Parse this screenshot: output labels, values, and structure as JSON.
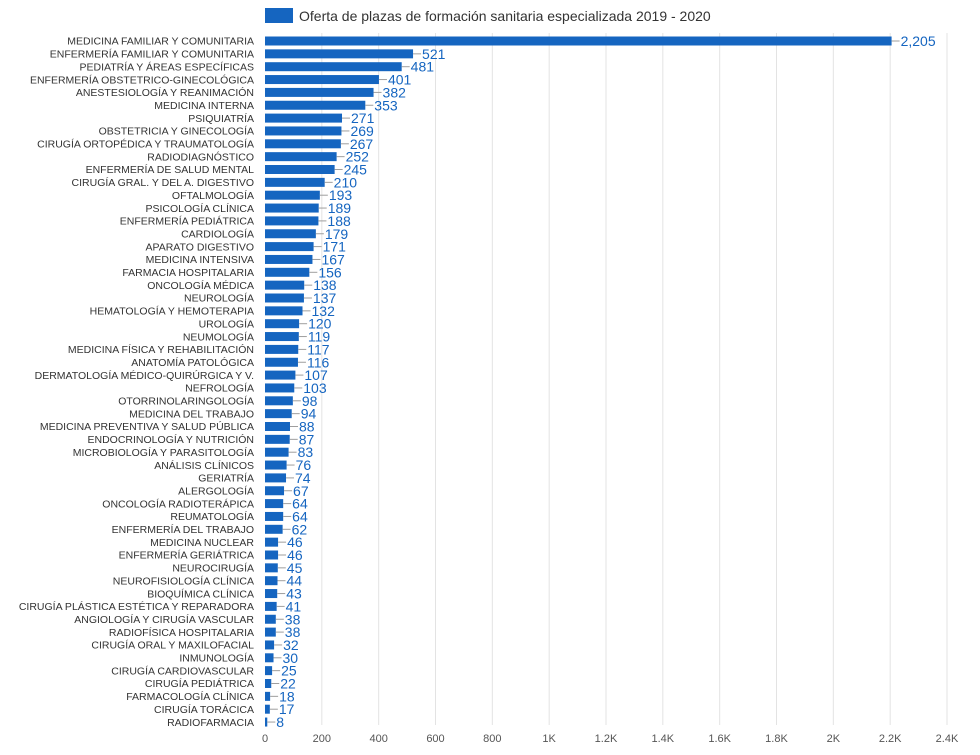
{
  "chart_data": {
    "type": "bar",
    "orientation": "horizontal",
    "legend": {
      "position": "top",
      "label": "Oferta de plazas de formación sanitaria especializada 2019 - 2020",
      "color": "#1565c0"
    },
    "series": [
      {
        "name": "Oferta de plazas de formación sanitaria especializada 2019 - 2020",
        "color": "#1565c0",
        "values": [
          2205,
          521,
          481,
          401,
          382,
          353,
          271,
          269,
          267,
          252,
          245,
          210,
          193,
          189,
          188,
          179,
          171,
          167,
          156,
          138,
          137,
          132,
          120,
          119,
          117,
          116,
          107,
          103,
          98,
          94,
          88,
          87,
          83,
          76,
          74,
          67,
          64,
          64,
          62,
          46,
          46,
          45,
          44,
          43,
          41,
          38,
          38,
          32,
          30,
          25,
          22,
          18,
          17,
          8
        ]
      }
    ],
    "categories": [
      "MEDICINA FAMILIAR Y COMUNITARIA",
      "ENFERMERÍA FAMILIAR Y COMUNITARIA",
      "PEDIATRÍA Y ÁREAS ESPECÍFICAS",
      "ENFERMERÍA OBSTETRICO-GINECOLÓGICA",
      "ANESTESIOLOGÍA Y REANIMACIÓN",
      "MEDICINA INTERNA",
      "PSIQUIATRÍA",
      "OBSTETRICIA Y GINECOLOGÍA",
      "CIRUGÍA ORTOPÉDICA Y TRAUMATOLOGÍA",
      "RADIODIAGNÓSTICO",
      "ENFERMERÍA DE SALUD MENTAL",
      "CIRUGÍA GRAL. Y DEL A. DIGESTIVO",
      "OFTALMOLOGÍA",
      "PSICOLOGÍA CLÍNICA",
      "ENFERMERÍA PEDIÁTRICA",
      "CARDIOLOGÍA",
      "APARATO DIGESTIVO",
      "MEDICINA INTENSIVA",
      "FARMACIA HOSPITALARIA",
      "ONCOLOGÍA MÉDICA",
      "NEUROLOGÍA",
      "HEMATOLOGÍA Y HEMOTERAPIA",
      "UROLOGÍA",
      "NEUMOLOGÍA",
      "MEDICINA FÍSICA Y REHABILITACIÓN",
      "ANATOMÍA PATOLÓGICA",
      "DERMATOLOGÍA MÉDICO-QUIRÚRGICA Y V.",
      "NEFROLOGÍA",
      "OTORRINOLARINGOLOGÍA",
      "MEDICINA DEL TRABAJO",
      "MEDICINA PREVENTIVA Y SALUD PÚBLICA",
      "ENDOCRINOLOGÍA Y NUTRICIÓN",
      "MICROBIOLOGÍA Y PARASITOLOGÍA",
      "ANÁLISIS CLÍNICOS",
      "GERIATRÍA",
      "ALERGOLOGÍA",
      "ONCOLOGÍA RADIOTERÁPICA",
      "REUMATOLOGÍA",
      "ENFERMERÍA DEL TRABAJO",
      "MEDICINA NUCLEAR",
      "ENFERMERÍA GERIÁTRICA",
      "NEUROCIRUGÍA",
      "NEUROFISIOLOGÍA CLÍNICA",
      "BIOQUÍMICA CLÍNICA",
      "CIRUGÍA PLÁSTICA ESTÉTICA Y REPARADORA",
      "ANGIOLOGÍA Y CIRUGÍA VASCULAR",
      "RADIOFÍSICA HOSPITALARIA",
      "CIRUGÍA ORAL Y MAXILOFACIAL",
      "INMUNOLOGÍA",
      "CIRUGÍA CARDIOVASCULAR",
      "CIRUGÍA PEDIÁTRICA",
      "FARMACOLOGÍA CLÍNICA",
      "CIRUGÍA TORÁCICA",
      "RADIOFARMACIA"
    ],
    "value_labels": [
      "2,205",
      "521",
      "481",
      "401",
      "382",
      "353",
      "271",
      "269",
      "267",
      "252",
      "245",
      "210",
      "193",
      "189",
      "188",
      "179",
      "171",
      "167",
      "156",
      "138",
      "137",
      "132",
      "120",
      "119",
      "117",
      "116",
      "107",
      "103",
      "98",
      "94",
      "88",
      "87",
      "83",
      "76",
      "74",
      "67",
      "64",
      "64",
      "62",
      "46",
      "46",
      "45",
      "44",
      "43",
      "41",
      "38",
      "38",
      "32",
      "30",
      "25",
      "22",
      "18",
      "17",
      "8"
    ],
    "xlim": [
      0,
      2400
    ],
    "x_ticks": [
      0,
      200,
      400,
      600,
      800,
      1000,
      1200,
      1400,
      1600,
      1800,
      2000,
      2200,
      2400
    ],
    "x_tick_labels": [
      "0",
      "200",
      "400",
      "600",
      "800",
      "1K",
      "1.2K",
      "1.4K",
      "1.6K",
      "1.8K",
      "2K",
      "2.2K",
      "2.4K"
    ],
    "grid": true,
    "xlabel": "",
    "ylabel": ""
  }
}
